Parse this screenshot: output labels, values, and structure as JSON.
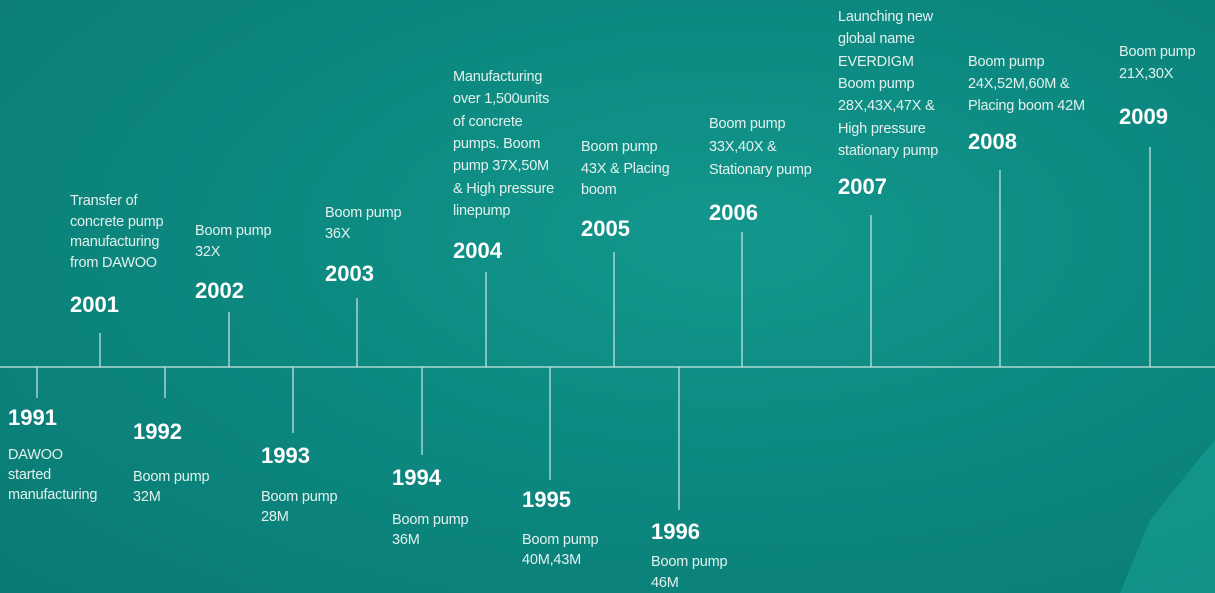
{
  "events": [
    {
      "year": "1991",
      "lines": [
        "DAWOO",
        "started",
        "manufacturing"
      ]
    },
    {
      "year": "2001",
      "lines": [
        "Transfer of",
        "concrete pump",
        "manufacturing",
        "from DAWOO"
      ]
    },
    {
      "year": "1992",
      "lines": [
        "Boom pump",
        "32M"
      ]
    },
    {
      "year": "2002",
      "lines": [
        "Boom pump",
        "32X"
      ]
    },
    {
      "year": "1993",
      "lines": [
        "Boom pump",
        "28M"
      ]
    },
    {
      "year": "2003",
      "lines": [
        "Boom pump",
        "36X"
      ]
    },
    {
      "year": "1994",
      "lines": [
        "Boom pump",
        "36M"
      ]
    },
    {
      "year": "2004",
      "lines": [
        "Manufacturing",
        "over 1,500units",
        "of concrete",
        "pumps. Boom",
        "pump 37X,50M",
        "& High pressure",
        "linepump"
      ]
    },
    {
      "year": "1995",
      "lines": [
        "Boom pump",
        "40M,43M"
      ]
    },
    {
      "year": "2005",
      "lines": [
        "Boom pump",
        "43X & Placing",
        "boom"
      ]
    },
    {
      "year": "1996",
      "lines": [
        "Boom pump",
        "46M"
      ]
    },
    {
      "year": "2006",
      "lines": [
        "Boom pump",
        "33X,40X &",
        "Stationary pump"
      ]
    },
    {
      "year": "2007",
      "lines": [
        "Launching new",
        "global name",
        "EVERDIGM",
        "Boom pump",
        "28X,43X,47X &",
        "High pressure",
        "stationary pump"
      ]
    },
    {
      "year": "2008",
      "lines": [
        "Boom pump",
        "24X,52M,60M &",
        "Placing boom 42M"
      ]
    },
    {
      "year": "2009",
      "lines": [
        "Boom pump",
        "21X,30X"
      ]
    }
  ]
}
